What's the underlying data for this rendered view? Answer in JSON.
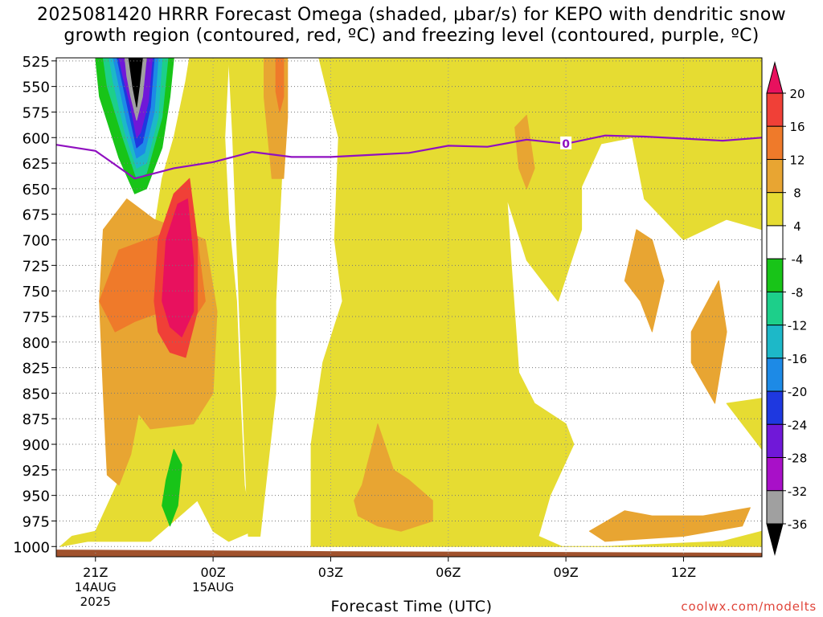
{
  "title": {
    "line1": "2025081420 HRRR Forecast Omega (shaded, μbar/s) for KEPO with dendritic snow",
    "line2": "growth region (contoured, red, ºC) and freezing level (contoured, purple, ºC)"
  },
  "credit": "coolwx.com/modelts",
  "chart_data": {
    "type": "heatmap",
    "title": "2025081420 HRRR Forecast Omega (shaded, μbar/s) for KEPO with dendritic snow growth region (contoured, red, ºC) and freezing level (contoured, purple, ºC)",
    "xlabel": "Forecast Time (UTC)",
    "ylabel": "",
    "x_ticks": [
      {
        "hour": 1,
        "label": "21Z",
        "sub1": "14AUG",
        "sub2": "2025"
      },
      {
        "hour": 4,
        "label": "00Z",
        "sub1": "15AUG",
        "sub2": ""
      },
      {
        "hour": 7,
        "label": "03Z",
        "sub1": "",
        "sub2": ""
      },
      {
        "hour": 10,
        "label": "06Z",
        "sub1": "",
        "sub2": ""
      },
      {
        "hour": 13,
        "label": "09Z",
        "sub1": "",
        "sub2": ""
      },
      {
        "hour": 16,
        "label": "12Z",
        "sub1": "",
        "sub2": ""
      }
    ],
    "xlim": [
      0,
      18
    ],
    "y_ticks": [
      "525",
      "550",
      "575",
      "600",
      "625",
      "650",
      "675",
      "700",
      "725",
      "750",
      "775",
      "800",
      "825",
      "850",
      "875",
      "900",
      "925",
      "950",
      "975",
      "1000"
    ],
    "ylim_hpa": [
      1010,
      522
    ],
    "grid": true,
    "colorbar": {
      "labels": [
        "20",
        "16",
        "12",
        "8",
        "4",
        "-4",
        "-8",
        "-12",
        "-16",
        "-20",
        "-24",
        "-28",
        "-32",
        "-36"
      ],
      "colors": [
        "#e8115e",
        "#f04037",
        "#ef7a2a",
        "#e8a532",
        "#e6dc32",
        "#ffffff",
        "#18c418",
        "#1dcf8a",
        "#1db8c8",
        "#1d8ae6",
        "#1e38e0",
        "#7018d8",
        "#a810c8",
        "#a0a0a0",
        "#000000"
      ]
    },
    "freezing_level": {
      "label": "0",
      "color": "#9010c0",
      "points": [
        [
          0,
          607
        ],
        [
          1,
          613
        ],
        [
          2,
          640
        ],
        [
          3,
          630
        ],
        [
          4,
          624
        ],
        [
          5,
          614
        ],
        [
          6,
          619
        ],
        [
          7,
          619
        ],
        [
          8,
          617
        ],
        [
          9,
          615
        ],
        [
          10,
          608
        ],
        [
          11,
          609
        ],
        [
          12,
          602
        ],
        [
          13,
          606
        ],
        [
          14,
          598
        ],
        [
          15,
          599
        ],
        [
          16,
          601
        ],
        [
          17,
          603
        ],
        [
          18,
          600
        ]
      ]
    },
    "omega_regions": [
      {
        "level": 4,
        "color": "#e6dc32",
        "polygon": [
          [
            0.4,
            990
          ],
          [
            1,
            985
          ],
          [
            1.6,
            935
          ],
          [
            2,
            850
          ],
          [
            2.2,
            760
          ],
          [
            2.5,
            690
          ],
          [
            2.7,
            640
          ],
          [
            3,
            600
          ],
          [
            3.3,
            545
          ],
          [
            3.4,
            522
          ],
          [
            4.4,
            522
          ],
          [
            4.3,
            600
          ],
          [
            4.4,
            680
          ],
          [
            4.6,
            760
          ],
          [
            4.7,
            860
          ],
          [
            4.8,
            940
          ],
          [
            5,
            985
          ],
          [
            4.4,
            995
          ],
          [
            4,
            985
          ],
          [
            3.6,
            955
          ],
          [
            3.3,
            965
          ],
          [
            2.4,
            995
          ],
          [
            0.8,
            995
          ],
          [
            0.1,
            1000
          ]
        ]
      },
      {
        "level": 4,
        "color": "#e6dc32",
        "polygon": [
          [
            4.4,
            522
          ],
          [
            5.6,
            522
          ],
          [
            5.8,
            600
          ],
          [
            5.7,
            680
          ],
          [
            5.6,
            760
          ],
          [
            5.6,
            850
          ],
          [
            5.2,
            990
          ],
          [
            4.9,
            990
          ],
          [
            4.8,
            900
          ],
          [
            4.7,
            800
          ],
          [
            4.6,
            700
          ],
          [
            4.5,
            600
          ]
        ]
      },
      {
        "level": 4,
        "color": "#e6dc32",
        "polygon": [
          [
            6.5,
            995
          ],
          [
            6.5,
            900
          ],
          [
            6.8,
            820
          ],
          [
            7.3,
            760
          ],
          [
            7.1,
            700
          ],
          [
            7.2,
            600
          ],
          [
            6.7,
            522
          ],
          [
            18,
            522
          ],
          [
            18,
            690
          ],
          [
            17.1,
            680
          ],
          [
            16,
            700
          ],
          [
            15,
            660
          ],
          [
            14.7,
            600
          ],
          [
            13.9,
            606
          ],
          [
            13.4,
            648
          ],
          [
            13.4,
            690
          ],
          [
            12.8,
            760
          ],
          [
            12,
            720
          ],
          [
            11.5,
            660
          ],
          [
            11.6,
            720
          ],
          [
            11.8,
            830
          ],
          [
            12.2,
            860
          ],
          [
            13,
            880
          ],
          [
            13.2,
            900
          ],
          [
            12.6,
            950
          ],
          [
            12.3,
            990
          ],
          [
            12.9,
            1000
          ],
          [
            14,
            1000
          ],
          [
            17,
            995
          ],
          [
            18,
            985
          ],
          [
            18,
            905
          ],
          [
            17.1,
            860
          ],
          [
            18,
            855
          ],
          [
            18,
            1000
          ],
          [
            6.5,
            1000
          ]
        ]
      },
      {
        "level": 8,
        "color": "#e8a532",
        "polygon": [
          [
            1.3,
            930
          ],
          [
            1.2,
            850
          ],
          [
            1.1,
            760
          ],
          [
            1.2,
            690
          ],
          [
            1.8,
            660
          ],
          [
            2.5,
            680
          ],
          [
            3.2,
            690
          ],
          [
            3.8,
            700
          ],
          [
            4.1,
            770
          ],
          [
            4,
            850
          ],
          [
            3.5,
            880
          ],
          [
            2.4,
            885
          ],
          [
            2.1,
            870
          ],
          [
            1.9,
            910
          ],
          [
            1.6,
            940
          ]
        ]
      },
      {
        "level": 8,
        "color": "#e8a532",
        "polygon": [
          [
            5.3,
            522
          ],
          [
            5.9,
            522
          ],
          [
            5.9,
            580
          ],
          [
            5.8,
            640
          ],
          [
            5.5,
            640
          ],
          [
            5.3,
            560
          ]
        ]
      },
      {
        "level": 8,
        "color": "#e8a532",
        "polygon": [
          [
            7.8,
            940
          ],
          [
            8.2,
            880
          ],
          [
            8.6,
            925
          ],
          [
            9,
            935
          ],
          [
            9.6,
            955
          ],
          [
            9.6,
            975
          ],
          [
            8.8,
            985
          ],
          [
            8.2,
            980
          ],
          [
            7.7,
            970
          ],
          [
            7.6,
            955
          ]
        ]
      },
      {
        "level": 8,
        "color": "#e8a532",
        "polygon": [
          [
            11.7,
            590
          ],
          [
            12,
            578
          ],
          [
            12.2,
            630
          ],
          [
            12,
            650
          ],
          [
            11.8,
            630
          ]
        ]
      },
      {
        "level": 8,
        "color": "#e8a532",
        "polygon": [
          [
            14.8,
            690
          ],
          [
            15.2,
            700
          ],
          [
            15.5,
            740
          ],
          [
            15.2,
            790
          ],
          [
            14.9,
            760
          ],
          [
            14.5,
            740
          ]
        ]
      },
      {
        "level": 8,
        "color": "#e8a532",
        "polygon": [
          [
            16.2,
            790
          ],
          [
            16.9,
            740
          ],
          [
            17.1,
            790
          ],
          [
            16.8,
            860
          ],
          [
            16.2,
            820
          ]
        ]
      },
      {
        "level": 8,
        "color": "#e8a532",
        "polygon": [
          [
            13.6,
            985
          ],
          [
            14.5,
            965
          ],
          [
            15.2,
            970
          ],
          [
            16.5,
            970
          ],
          [
            17.7,
            962
          ],
          [
            17.5,
            980
          ],
          [
            16,
            990
          ],
          [
            14,
            995
          ]
        ]
      },
      {
        "level": 12,
        "color": "#ef7a2a",
        "polygon": [
          [
            1.1,
            760
          ],
          [
            1.6,
            710
          ],
          [
            2.3,
            700
          ],
          [
            3,
            690
          ],
          [
            3.6,
            700
          ],
          [
            3.8,
            760
          ],
          [
            3.3,
            790
          ],
          [
            2.7,
            770
          ],
          [
            2,
            780
          ],
          [
            1.5,
            790
          ]
        ]
      },
      {
        "level": 12,
        "color": "#ef7a2a",
        "polygon": [
          [
            5.6,
            522
          ],
          [
            5.8,
            522
          ],
          [
            5.8,
            560
          ],
          [
            5.7,
            575
          ],
          [
            5.6,
            555
          ]
        ]
      },
      {
        "level": 16,
        "color": "#f04037",
        "polygon": [
          [
            2.5,
            760
          ],
          [
            2.6,
            700
          ],
          [
            3,
            655
          ],
          [
            3.4,
            640
          ],
          [
            3.6,
            700
          ],
          [
            3.6,
            770
          ],
          [
            3.3,
            815
          ],
          [
            2.9,
            810
          ],
          [
            2.6,
            790
          ]
        ]
      },
      {
        "level": 20,
        "color": "#e8115e",
        "polygon": [
          [
            2.7,
            760
          ],
          [
            2.8,
            700
          ],
          [
            3.1,
            665
          ],
          [
            3.35,
            660
          ],
          [
            3.5,
            720
          ],
          [
            3.5,
            770
          ],
          [
            3.2,
            795
          ],
          [
            2.9,
            785
          ]
        ]
      },
      {
        "level": -4,
        "color": "#18c418",
        "polygon": [
          [
            1,
            522
          ],
          [
            3,
            522
          ],
          [
            2.9,
            560
          ],
          [
            2.7,
            610
          ],
          [
            2.3,
            650
          ],
          [
            2.0,
            655
          ],
          [
            1.6,
            620
          ],
          [
            1.1,
            560
          ]
        ]
      },
      {
        "level": -4,
        "color": "#18c418",
        "polygon": [
          [
            2.8,
            935
          ],
          [
            3,
            905
          ],
          [
            3.2,
            920
          ],
          [
            3.1,
            960
          ],
          [
            2.9,
            980
          ],
          [
            2.7,
            960
          ]
        ]
      },
      {
        "level": -8,
        "color": "#1dcf8a",
        "polygon": [
          [
            1.2,
            522
          ],
          [
            2.85,
            522
          ],
          [
            2.7,
            580
          ],
          [
            2.3,
            635
          ],
          [
            2.05,
            640
          ],
          [
            1.7,
            600
          ],
          [
            1.3,
            550
          ]
        ]
      },
      {
        "level": -12,
        "color": "#1db8c8",
        "polygon": [
          [
            1.35,
            522
          ],
          [
            2.7,
            522
          ],
          [
            2.6,
            580
          ],
          [
            2.3,
            625
          ],
          [
            2.05,
            630
          ],
          [
            1.75,
            595
          ],
          [
            1.45,
            545
          ]
        ]
      },
      {
        "level": -16,
        "color": "#1d8ae6",
        "polygon": [
          [
            1.45,
            522
          ],
          [
            2.6,
            522
          ],
          [
            2.5,
            575
          ],
          [
            2.25,
            615
          ],
          [
            2.05,
            620
          ],
          [
            1.8,
            585
          ],
          [
            1.55,
            540
          ]
        ]
      },
      {
        "level": -20,
        "color": "#1e38e0",
        "polygon": [
          [
            1.55,
            522
          ],
          [
            2.5,
            522
          ],
          [
            2.4,
            570
          ],
          [
            2.2,
            605
          ],
          [
            2.05,
            610
          ],
          [
            1.85,
            575
          ],
          [
            1.65,
            540
          ]
        ]
      },
      {
        "level": -28,
        "color": "#7018d8",
        "polygon": [
          [
            1.6,
            522
          ],
          [
            2.45,
            522
          ],
          [
            2.35,
            565
          ],
          [
            2.15,
            595
          ],
          [
            2.05,
            600
          ],
          [
            1.9,
            570
          ],
          [
            1.7,
            540
          ]
        ]
      },
      {
        "level": -32,
        "color": "#a0a0a0",
        "polygon": [
          [
            1.75,
            522
          ],
          [
            2.3,
            522
          ],
          [
            2.2,
            560
          ],
          [
            2.05,
            583
          ],
          [
            1.9,
            560
          ],
          [
            1.8,
            540
          ]
        ]
      },
      {
        "level": -36,
        "color": "#000000",
        "polygon": [
          [
            1.85,
            522
          ],
          [
            2.2,
            522
          ],
          [
            2.12,
            550
          ],
          [
            2.05,
            570
          ],
          [
            1.95,
            550
          ]
        ]
      }
    ],
    "ground_color": "#a0522d"
  }
}
